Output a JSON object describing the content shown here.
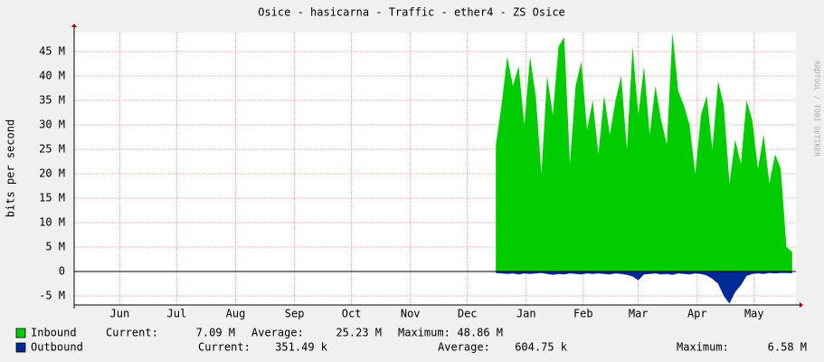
{
  "chart_data": {
    "type": "area",
    "title": "Osice - hasicarna - Traffic - ether4 - ZS Osice",
    "y_label": "bits per second",
    "watermark": "RRDTOOL / TOBI OETIKER",
    "xlim": [
      0,
      380
    ],
    "xticks": [
      {
        "value": 24,
        "label": "Jun"
      },
      {
        "value": 54,
        "label": "Jul"
      },
      {
        "value": 85,
        "label": "Aug"
      },
      {
        "value": 116,
        "label": "Sep"
      },
      {
        "value": 146,
        "label": "Oct"
      },
      {
        "value": 177,
        "label": "Nov"
      },
      {
        "value": 207,
        "label": "Dec"
      },
      {
        "value": 238,
        "label": "Jan"
      },
      {
        "value": 268,
        "label": "Feb"
      },
      {
        "value": 297,
        "label": "Mar"
      },
      {
        "value": 328,
        "label": "Apr"
      },
      {
        "value": 358,
        "label": "May"
      }
    ],
    "ylim": [
      -6850000,
      48900000
    ],
    "yticks": [
      {
        "value": -5000000,
        "label": "-5 M"
      },
      0,
      {
        "value": 5000000,
        "label": "5 M"
      },
      {
        "value": 10000000,
        "label": "10 M"
      },
      {
        "value": 15000000,
        "label": "15 M"
      },
      {
        "value": 20000000,
        "label": "20 M"
      },
      {
        "value": 25000000,
        "label": "25 M"
      },
      {
        "value": 30000000,
        "label": "30 M"
      },
      {
        "value": 35000000,
        "label": "35 M"
      },
      {
        "value": 40000000,
        "label": "40 M"
      },
      {
        "value": 45000000,
        "label": "45 M"
      }
    ],
    "grid": true,
    "x": [
      222,
      225,
      228,
      231,
      234,
      237,
      240,
      243,
      246,
      249,
      252,
      255,
      258,
      261,
      264,
      267,
      270,
      273,
      276,
      279,
      282,
      285,
      288,
      291,
      294,
      297,
      300,
      303,
      306,
      309,
      312,
      315,
      318,
      321,
      324,
      327,
      330,
      333,
      336,
      339,
      342,
      345,
      348,
      351,
      354,
      357,
      360,
      363,
      366,
      369,
      372,
      375,
      378
    ],
    "series": [
      {
        "name": "Inbound",
        "color": "#00cc00",
        "values": [
          26000000,
          34000000,
          44000000,
          38000000,
          42000000,
          30000000,
          44000000,
          36000000,
          20000000,
          40000000,
          32000000,
          46000000,
          48000000,
          22000000,
          38000000,
          43000000,
          29000000,
          35000000,
          24000000,
          36000000,
          28000000,
          35000000,
          40000000,
          25000000,
          46000000,
          32000000,
          42000000,
          28000000,
          38000000,
          31000000,
          26000000,
          48860000,
          37000000,
          34000000,
          30000000,
          20000000,
          32000000,
          36000000,
          25000000,
          39000000,
          34000000,
          18000000,
          27000000,
          22000000,
          35000000,
          31000000,
          21000000,
          28000000,
          18000000,
          24000000,
          21000000,
          5000000,
          4000000
        ],
        "stats": [
          {
            "label": "Current:",
            "value": "7.09 M"
          },
          {
            "label": "Average:",
            "value": "25.23 M"
          },
          {
            "label": "Maximum:",
            "value": "48.86 M"
          }
        ]
      },
      {
        "name": "Outbound",
        "color": "#002a97",
        "values": [
          -300000,
          -400000,
          -500000,
          -400000,
          -600000,
          -400000,
          -500000,
          -400000,
          -300000,
          -500000,
          -700000,
          -500000,
          -600000,
          -400000,
          -500000,
          -600000,
          -400000,
          -500000,
          -400000,
          -500000,
          -600000,
          -400000,
          -500000,
          -700000,
          -1000000,
          -1800000,
          -600000,
          -500000,
          -400000,
          -600000,
          -500000,
          -700000,
          -400000,
          -500000,
          -600000,
          -400000,
          -500000,
          -800000,
          -1500000,
          -2500000,
          -5000000,
          -6580000,
          -4200000,
          -2800000,
          -900000,
          -500000,
          -400000,
          -500000,
          -300000,
          -400000,
          -300000,
          -300000,
          -350000
        ],
        "stats": [
          {
            "label": "Current:",
            "value": "351.49 k"
          },
          {
            "label": "Average:",
            "value": "604.75 k"
          },
          {
            "label": "Maximum:",
            "value": "6.58 M"
          }
        ]
      }
    ]
  }
}
